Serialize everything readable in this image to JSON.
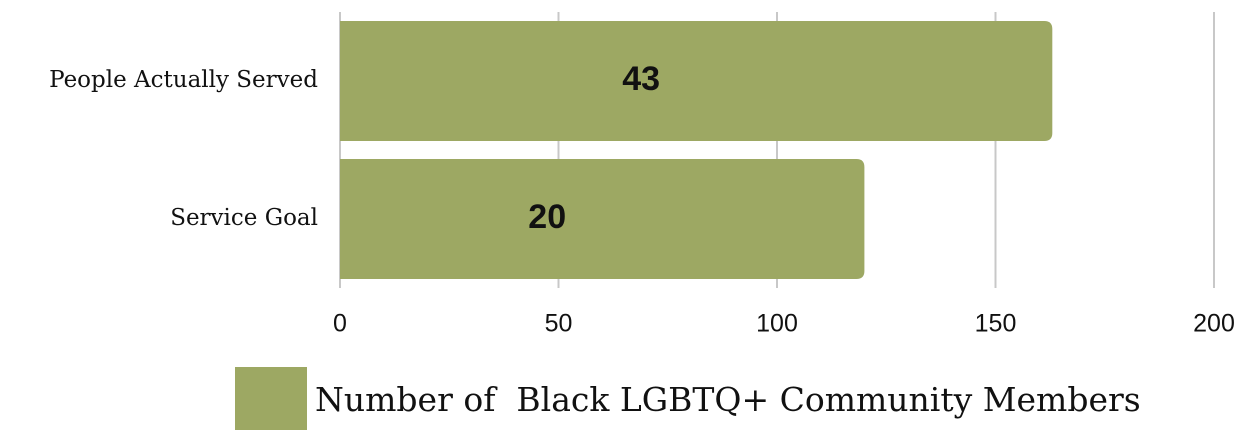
{
  "chart_data": {
    "type": "barh",
    "categories": [
      "People Actually Served",
      "Service Goal"
    ],
    "series": [
      {
        "name": "Number of  Black LGBTQ+ Community Members",
        "color": "#9da863",
        "values": [
          163,
          120
        ]
      }
    ],
    "annotations": [
      "43",
      "20"
    ],
    "xlim": [
      0,
      200
    ],
    "xticks": [
      0,
      50,
      100,
      150,
      200
    ],
    "grid": true,
    "legend": "bottom"
  }
}
